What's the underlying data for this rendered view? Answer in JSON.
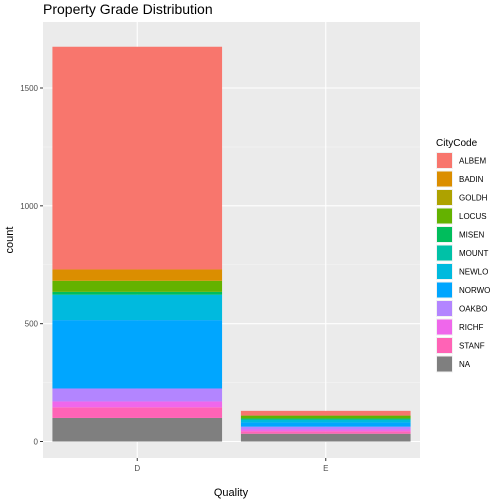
{
  "chart_data": {
    "type": "bar",
    "stacked": true,
    "title": "Property Grade Distribution",
    "xlabel": "Quality",
    "ylabel": "count",
    "categories": [
      "D",
      "E"
    ],
    "ylim": [
      0,
      1800
    ],
    "yticks": [
      0,
      500,
      1000,
      1500
    ],
    "grid": true,
    "legend": {
      "title": "CityCode",
      "placement": "right"
    },
    "series": [
      {
        "name": "ALBEM",
        "color": "#F8766D",
        "values": [
          945,
          20
        ]
      },
      {
        "name": "BADIN",
        "color": "#DB8E00",
        "values": [
          48,
          0
        ]
      },
      {
        "name": "GOLDH",
        "color": "#AEA200",
        "values": [
          0,
          0
        ]
      },
      {
        "name": "LOCUS",
        "color": "#64B200",
        "values": [
          47,
          12
        ]
      },
      {
        "name": "MISEN",
        "color": "#00BD5C",
        "values": [
          12,
          5
        ]
      },
      {
        "name": "MOUNT",
        "color": "#00C1A7",
        "values": [
          0,
          0
        ]
      },
      {
        "name": "NEWLO",
        "color": "#00BADE",
        "values": [
          108,
          12
        ]
      },
      {
        "name": "NORWO",
        "color": "#00A6FF",
        "values": [
          290,
          18
        ]
      },
      {
        "name": "OAKBO",
        "color": "#B385FF",
        "values": [
          55,
          12
        ]
      },
      {
        "name": "RICHF",
        "color": "#EF67EB",
        "values": [
          25,
          8
        ]
      },
      {
        "name": "STANF",
        "color": "#FF63B6",
        "values": [
          45,
          10
        ]
      },
      {
        "name": "NA",
        "color": "#7F7F7F",
        "values": [
          100,
          33
        ]
      }
    ]
  }
}
